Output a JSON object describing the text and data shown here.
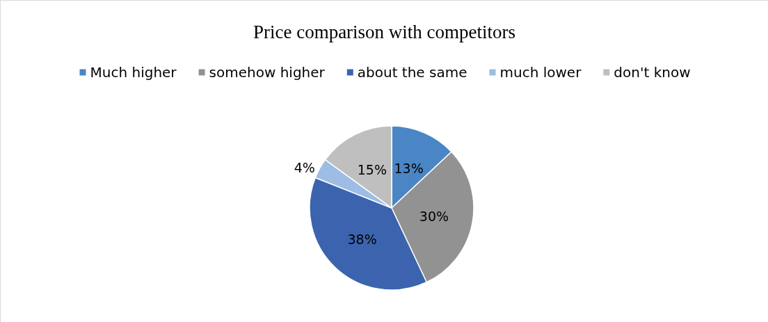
{
  "chart_data": {
    "type": "pie",
    "title": "Price comparison with competitors",
    "categories": [
      "Much higher",
      "somehow higher",
      "about the same",
      "much lower",
      "don't know"
    ],
    "values": [
      13,
      30,
      38,
      4,
      15
    ],
    "colors": [
      "#4a86c5",
      "#929292",
      "#3c64ae",
      "#9dbde4",
      "#bfbfbf"
    ],
    "value_labels": [
      "13%",
      "30%",
      "38%",
      "4%",
      "15%"
    ],
    "legend": "top"
  }
}
